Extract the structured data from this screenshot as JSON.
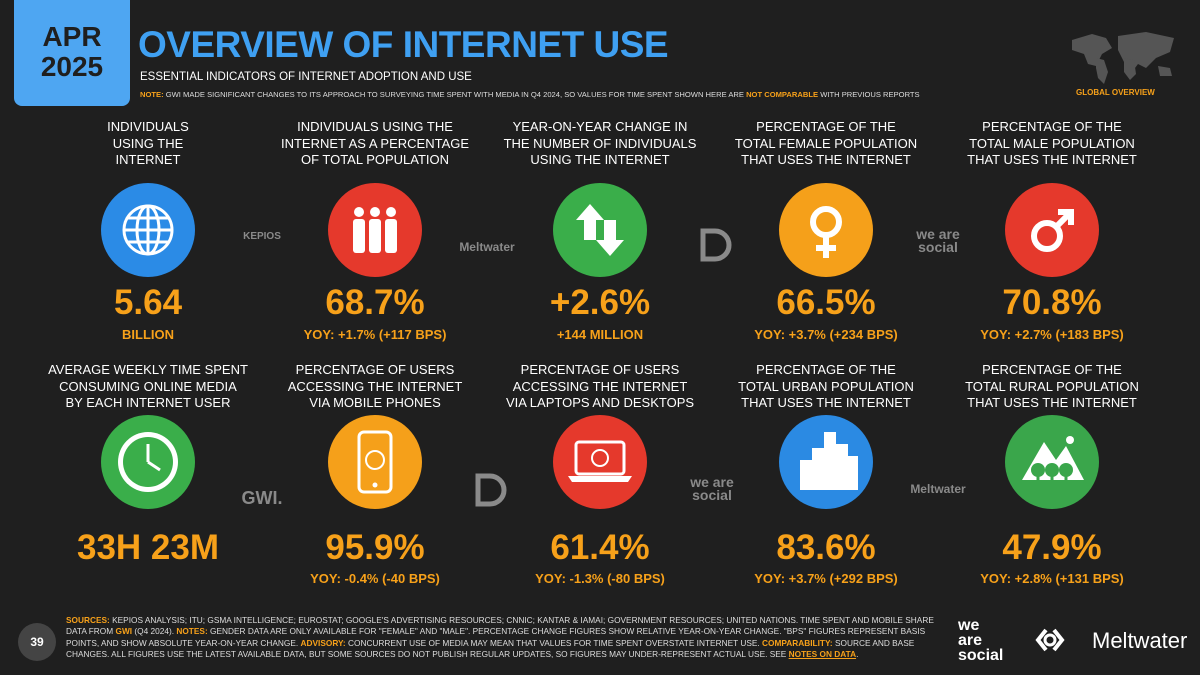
{
  "header": {
    "month": "APR",
    "year": "2025",
    "title": "OVERVIEW OF INTERNET USE",
    "subtitle": "ESSENTIAL INDICATORS OF INTERNET ADOPTION AND USE",
    "note": [
      "NOTE:",
      " GWI MADE SIGNIFICANT CHANGES TO ITS APPROACH TO SURVEYING TIME SPENT WITH MEDIA IN Q4 2024, SO VALUES FOR TIME SPENT SHOWN HERE ARE ",
      "NOT COMPARABLE",
      " WITH PREVIOUS REPORTS"
    ],
    "badge": "GLOBAL OVERVIEW"
  },
  "cells": [
    {
      "label": [
        "INDIVIDUALS",
        "USING THE",
        "INTERNET"
      ],
      "value": "5.64",
      "sub": "BILLION"
    },
    {
      "label": [
        "INDIVIDUALS USING THE",
        "INTERNET AS A PERCENTAGE",
        "OF TOTAL POPULATION"
      ],
      "value": "68.7%",
      "sub": "YOY: +1.7% (+117 BPS)"
    },
    {
      "label": [
        "YEAR-ON-YEAR CHANGE IN",
        "THE NUMBER OF INDIVIDUALS",
        "USING THE INTERNET"
      ],
      "value": "+2.6%",
      "sub": "+144 MILLION"
    },
    {
      "label": [
        "PERCENTAGE OF THE",
        "TOTAL FEMALE POPULATION",
        "THAT USES THE INTERNET"
      ],
      "value": "66.5%",
      "sub": "YOY: +3.7% (+234 BPS)"
    },
    {
      "label": [
        "PERCENTAGE OF THE",
        "TOTAL MALE POPULATION",
        "THAT USES THE INTERNET"
      ],
      "value": "70.8%",
      "sub": "YOY: +2.7% (+183 BPS)"
    },
    {
      "label": [
        "AVERAGE WEEKLY TIME SPENT",
        "CONSUMING ONLINE MEDIA",
        "BY EACH INTERNET USER"
      ],
      "value": "33H 23M"
    },
    {
      "label": [
        "PERCENTAGE OF USERS",
        "ACCESSING THE INTERNET",
        "VIA MOBILE PHONES"
      ],
      "value": "95.9%",
      "sub": "YOY: -0.4% (-40 BPS)"
    },
    {
      "label": [
        "PERCENTAGE OF USERS",
        "ACCESSING THE INTERNET",
        "VIA LAPTOPS AND DESKTOPS"
      ],
      "value": "61.4%",
      "sub": "YOY: -1.3% (-80 BPS)"
    },
    {
      "label": [
        "PERCENTAGE OF THE",
        "TOTAL URBAN POPULATION",
        "THAT USES THE INTERNET"
      ],
      "value": "83.6%",
      "sub": "YOY: +3.7% (+292 BPS)"
    },
    {
      "label": [
        "PERCENTAGE OF THE",
        "TOTAL RURAL POPULATION",
        "THAT USES THE INTERNET"
      ],
      "value": "47.9%",
      "sub": "YOY: +2.8% (+131 BPS)"
    }
  ],
  "watermarks": [
    "KEPIOS",
    "Meltwater",
    "we are social",
    "GWI.",
    "we are social",
    "Meltwater"
  ],
  "footer": {
    "page": "39",
    "sources": [
      "SOURCES:",
      " KEPIOS ANALYSIS; ITU; GSMA INTELLIGENCE; EUROSTAT; GOOGLE'S ADVERTISING RESOURCES; CNNIC; KANTAR & IAMAI; GOVERNMENT RESOURCES; UNITED NATIONS. TIME SPENT AND MOBILE SHARE DATA FROM ",
      "GWI",
      " (Q4 2024). ",
      "NOTES:",
      " GENDER DATA ARE ONLY AVAILABLE FOR \"FEMALE\" AND \"MALE\". PERCENTAGE CHANGE FIGURES SHOW RELATIVE YEAR-ON-YEAR CHANGE. \"BPS\" FIGURES REPRESENT BASIS POINTS, AND SHOW ABSOLUTE YEAR-ON-YEAR CHANGE. ",
      "ADVISORY:",
      " CONCURRENT USE OF MEDIA MAY MEAN THAT VALUES FOR TIME SPENT OVERSTATE INTERNET USE. ",
      "COMPARABILITY:",
      " SOURCE AND BASE CHANGES. ALL FIGURES USE THE LATEST AVAILABLE DATA, BUT SOME SOURCES DO NOT PUBLISH REGULAR UPDATES, SO FIGURES MAY UNDER-REPRESENT ACTUAL USE. SEE ",
      "NOTES ON DATA",
      "."
    ],
    "logo_left": [
      "we",
      "are",
      "social"
    ],
    "logo_right": "Meltwater"
  }
}
